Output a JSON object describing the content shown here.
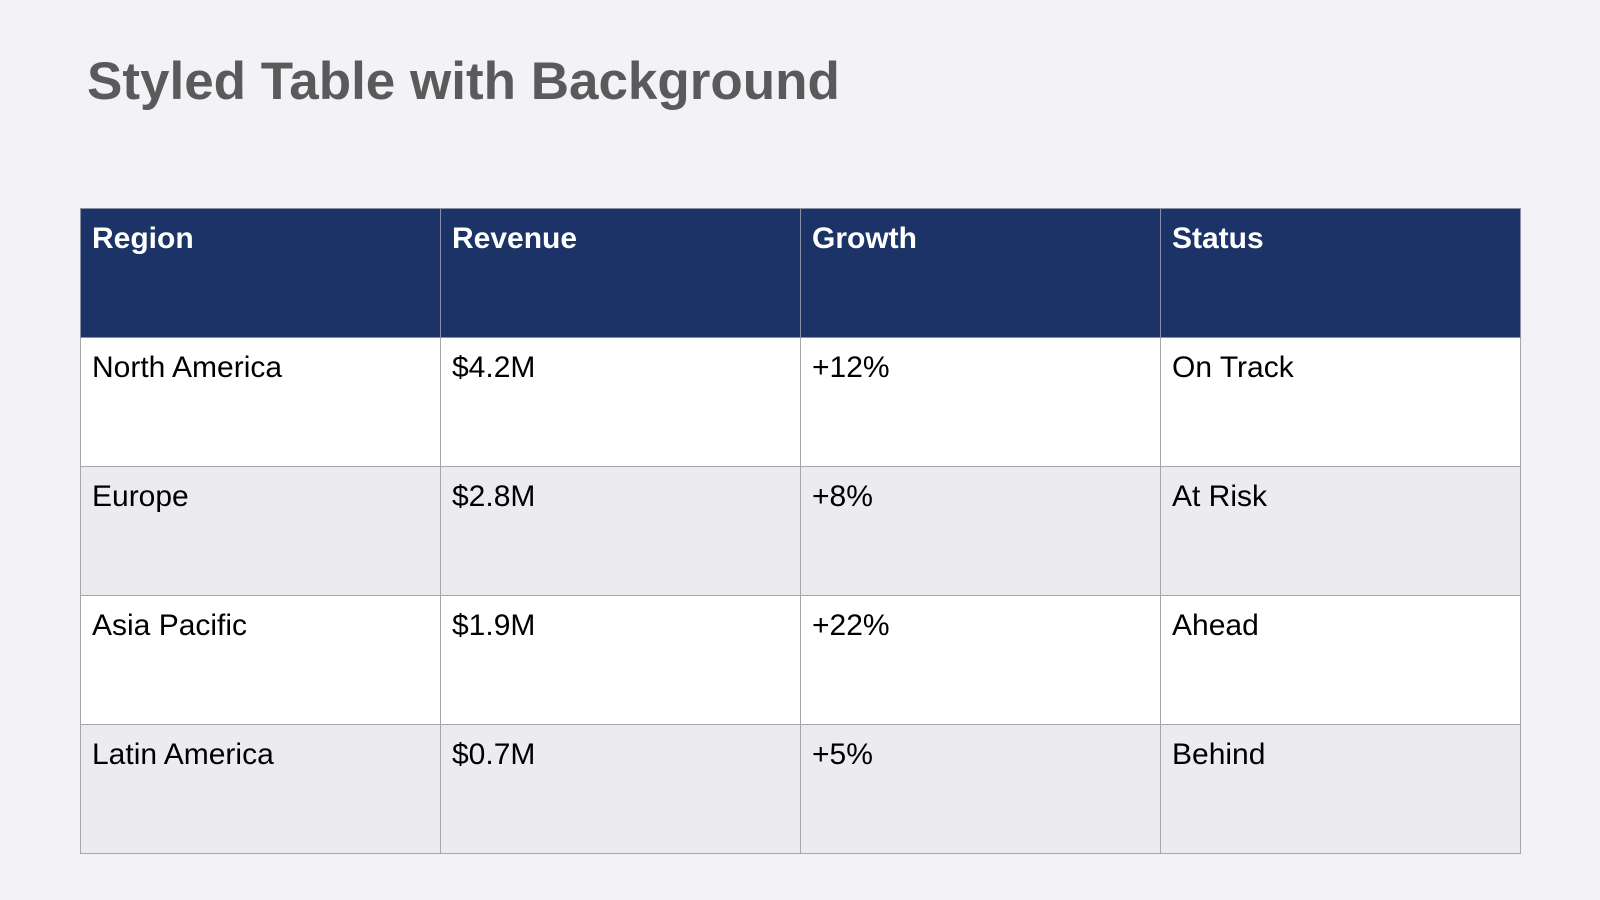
{
  "title": "Styled Table with Background",
  "table": {
    "headers": [
      "Region",
      "Revenue",
      "Growth",
      "Status"
    ],
    "rows": [
      [
        "North America",
        "$4.2M",
        "+12%",
        "On Track"
      ],
      [
        "Europe",
        "$2.8M",
        "+8%",
        "At Risk"
      ],
      [
        "Asia Pacific",
        "$1.9M",
        "+22%",
        "Ahead"
      ],
      [
        "Latin America",
        "$0.7M",
        "+5%",
        "Behind"
      ]
    ]
  },
  "colors": {
    "background": "#f2f2f7",
    "header_fill": "#1b3366",
    "header_text": "#ffffff",
    "row_fill_odd": "#ffffff",
    "row_fill_even": "#ebebf0",
    "title_text": "#5a5a5a",
    "border": "#a6a6a6"
  }
}
